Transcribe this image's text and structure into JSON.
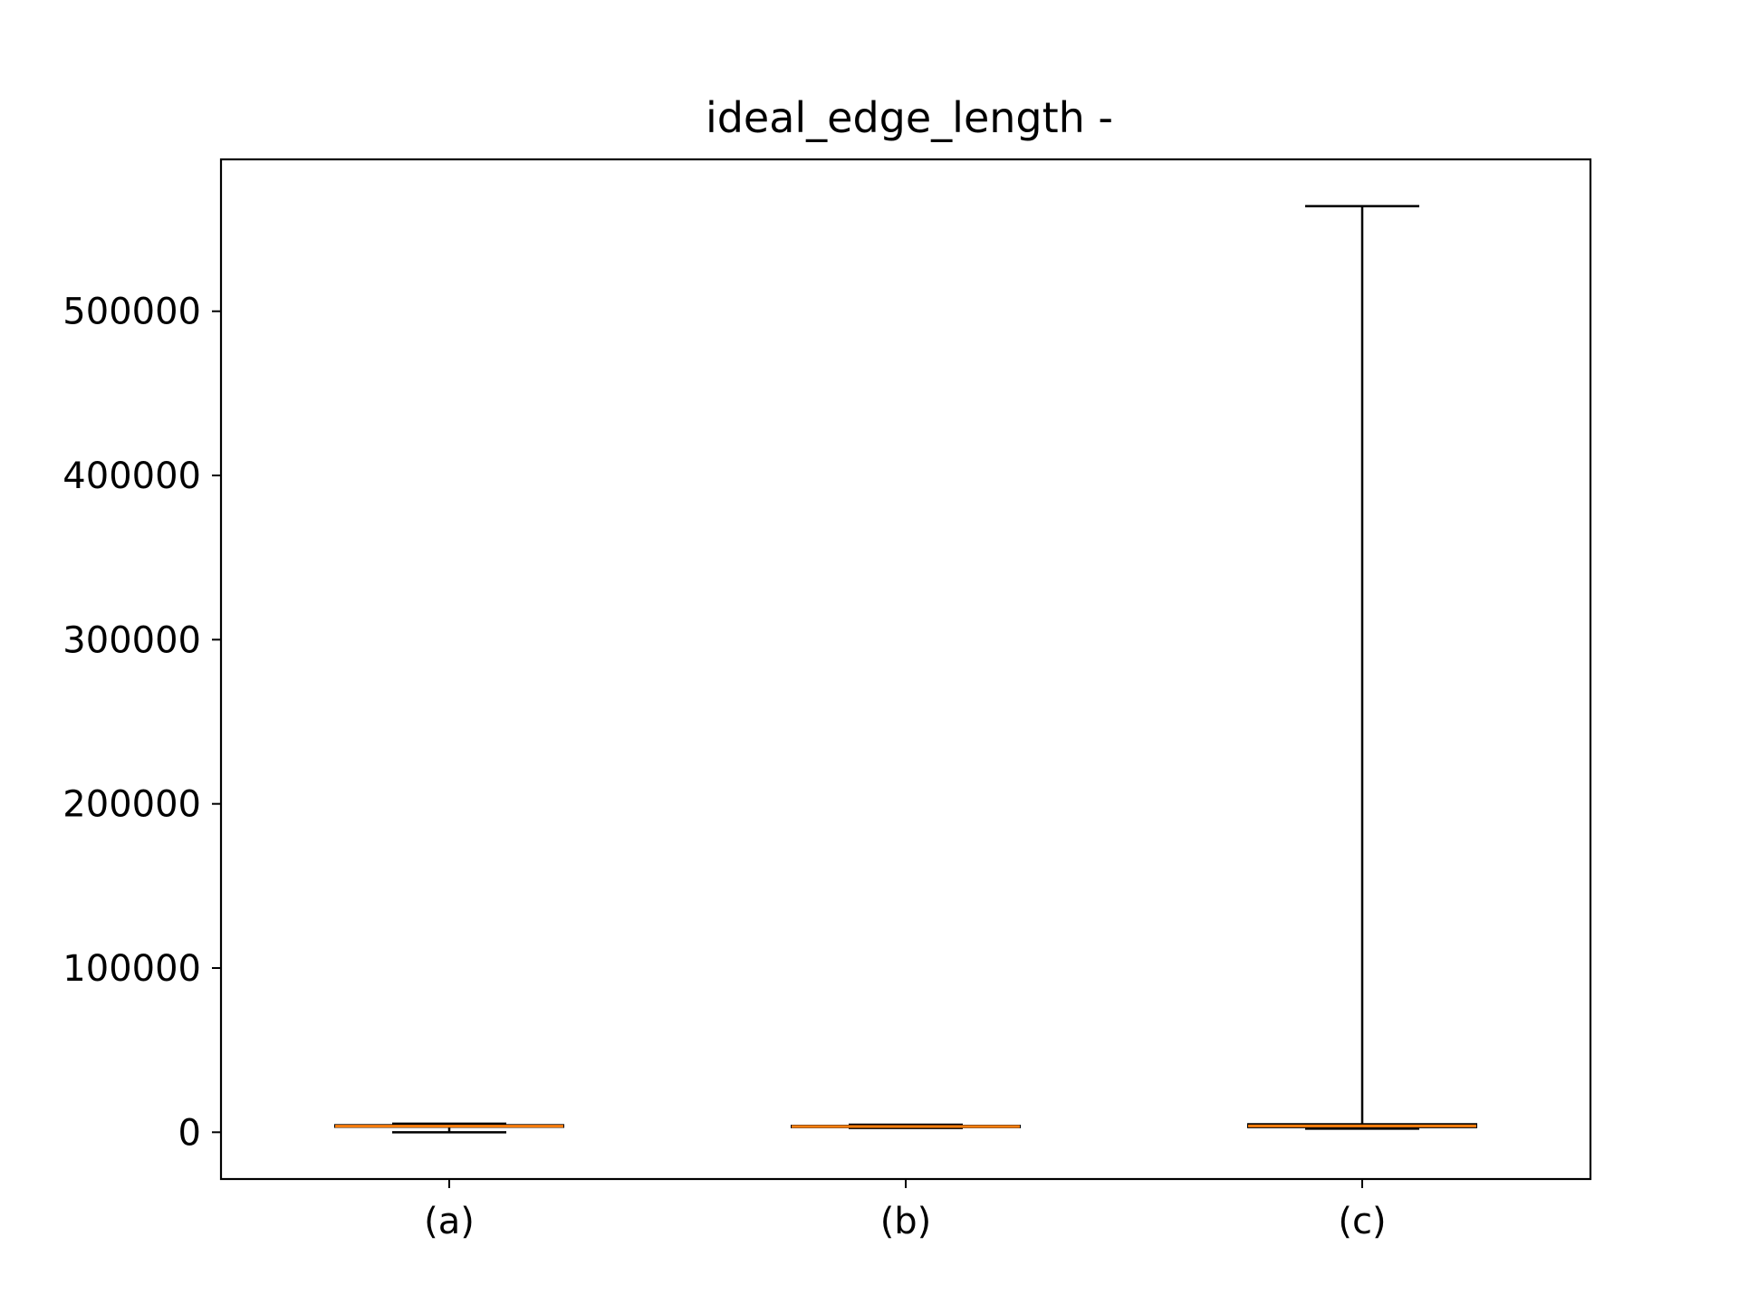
{
  "chart_data": {
    "type": "box",
    "title": "ideal_edge_length -",
    "xlabel": "",
    "ylabel": "",
    "categories": [
      "(a)",
      "(b)",
      "(c)"
    ],
    "ylim": [
      -28500,
      592500
    ],
    "yticks": [
      0,
      100000,
      200000,
      300000,
      400000,
      500000
    ],
    "ytick_labels": [
      "0",
      "100000",
      "200000",
      "300000",
      "400000",
      "500000"
    ],
    "boxes": [
      {
        "category": "(a)",
        "whisker_low": 0,
        "q1": 3200,
        "median": 3700,
        "q3": 4400,
        "whisker_high": 5200
      },
      {
        "category": "(b)",
        "whisker_low": 2600,
        "q1": 3000,
        "median": 3500,
        "q3": 4000,
        "whisker_high": 4600
      },
      {
        "category": "(c)",
        "whisker_low": 2200,
        "q1": 3000,
        "median": 3800,
        "q3": 5000,
        "whisker_high": 564000
      }
    ],
    "grid": false,
    "colors": {
      "box": "#000000",
      "median": "#ff7f0e",
      "whisker": "#000000",
      "axes": "#000000",
      "background": "#ffffff"
    }
  }
}
